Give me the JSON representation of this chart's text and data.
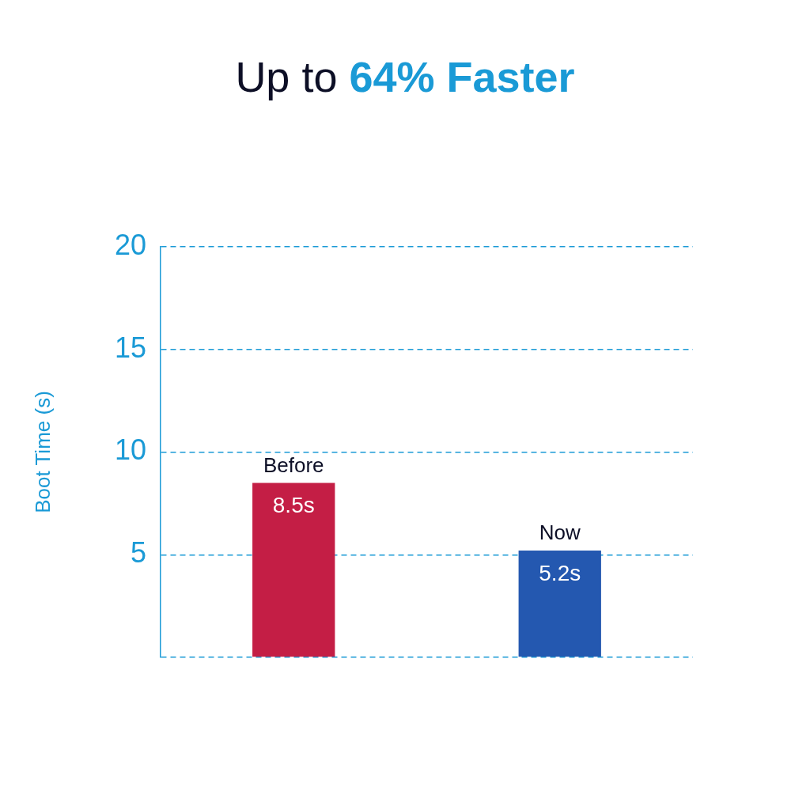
{
  "chart_data": {
    "type": "bar",
    "title": "Up to 64% Faster",
    "ylabel": "Boot Time (s)",
    "categories": [
      "Before",
      "Now"
    ],
    "values": [
      8.5,
      5.2
    ],
    "colors": [
      "#c41e45",
      "#2458b0"
    ],
    "value_labels": [
      "8.5s",
      "5.2s"
    ],
    "ylim": [
      0,
      20
    ],
    "yticks": [
      {
        "value": 0,
        "label": null
      },
      5,
      10,
      15,
      20
    ],
    "grid": "y",
    "legend": false
  }
}
